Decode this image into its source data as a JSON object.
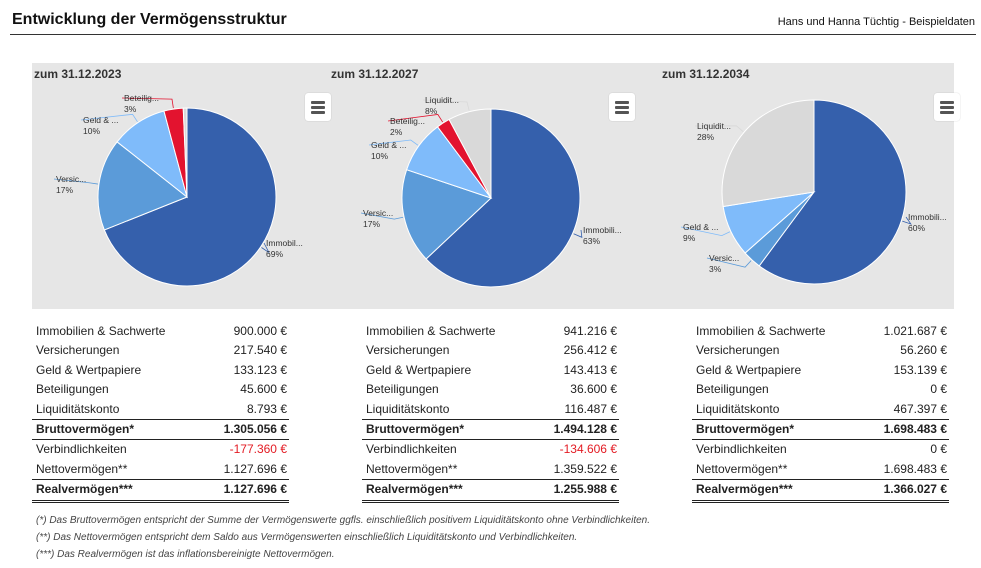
{
  "header": {
    "title": "Entwicklung der Vermögensstruktur",
    "subtitle": "Hans und Hanna Tüchtig - Beispieldaten"
  },
  "colors": {
    "Immobilien": "#3560ac",
    "Versicherungen": "#5b9bd9",
    "Geld": "#7fbbfa",
    "Beteiligungen": "#e3132f",
    "Liquiditaet": "#d9d9d9",
    "negative": "#e31b23",
    "band": "#e6e6e6"
  },
  "chart_data": [
    {
      "type": "pie",
      "title": "zum 31.12.2023",
      "slices": [
        {
          "label": "Immobil...",
          "value": 900000,
          "percent": "69%"
        },
        {
          "label": "Versic...",
          "value": 217540,
          "percent": "17%"
        },
        {
          "label": "Geld & ...",
          "value": 133123,
          "percent": "10%"
        },
        {
          "label": "Beteilig...",
          "value": 45600,
          "percent": "3%"
        },
        {
          "label": "",
          "value": 8793,
          "percent": ""
        }
      ]
    },
    {
      "type": "pie",
      "title": "zum 31.12.2027",
      "slices": [
        {
          "label": "Immobili...",
          "value": 941216,
          "percent": "63%"
        },
        {
          "label": "Versic...",
          "value": 256412,
          "percent": "17%"
        },
        {
          "label": "Geld & ...",
          "value": 143413,
          "percent": "10%"
        },
        {
          "label": "Beteilig...",
          "value": 36600,
          "percent": "2%"
        },
        {
          "label": "Liquidit...",
          "value": 116487,
          "percent": "8%"
        }
      ]
    },
    {
      "type": "pie",
      "title": "zum 31.12.2034",
      "slices": [
        {
          "label": "Immobili...",
          "value": 1021687,
          "percent": "60%"
        },
        {
          "label": "Versic...",
          "value": 56260,
          "percent": "3%"
        },
        {
          "label": "Geld & ...",
          "value": 153139,
          "percent": "9%"
        },
        {
          "label": "",
          "value": 0,
          "percent": ""
        },
        {
          "label": "Liquidit...",
          "value": 467397,
          "percent": "28%"
        }
      ]
    }
  ],
  "tables": [
    {
      "rows": [
        {
          "label": "Immobilien & Sachwerte",
          "value": "900.000 €"
        },
        {
          "label": "Versicherungen",
          "value": "217.540 €"
        },
        {
          "label": "Geld & Wertpapiere",
          "value": "133.123 €"
        },
        {
          "label": "Beteiligungen",
          "value": "45.600 €"
        },
        {
          "label": "Liquiditätskonto",
          "value": "8.793 €"
        },
        {
          "label": "Bruttovermögen*",
          "value": "1.305.056 €"
        },
        {
          "label": "Verbindlichkeiten",
          "value": "-177.360 €"
        },
        {
          "label": "Nettovermögen**",
          "value": "1.127.696 €"
        },
        {
          "label": "Realvermögen***",
          "value": "1.127.696 €"
        }
      ]
    },
    {
      "rows": [
        {
          "label": "Immobilien & Sachwerte",
          "value": "941.216 €"
        },
        {
          "label": "Versicherungen",
          "value": "256.412 €"
        },
        {
          "label": "Geld & Wertpapiere",
          "value": "143.413 €"
        },
        {
          "label": "Beteiligungen",
          "value": "36.600 €"
        },
        {
          "label": "Liquiditätskonto",
          "value": "116.487 €"
        },
        {
          "label": "Bruttovermögen*",
          "value": "1.494.128 €"
        },
        {
          "label": "Verbindlichkeiten",
          "value": "-134.606 €"
        },
        {
          "label": "Nettovermögen**",
          "value": "1.359.522 €"
        },
        {
          "label": "Realvermögen***",
          "value": "1.255.988 €"
        }
      ]
    },
    {
      "rows": [
        {
          "label": "Immobilien & Sachwerte",
          "value": "1.021.687 €"
        },
        {
          "label": "Versicherungen",
          "value": "56.260 €"
        },
        {
          "label": "Geld & Wertpapiere",
          "value": "153.139 €"
        },
        {
          "label": "Beteiligungen",
          "value": "0 €"
        },
        {
          "label": "Liquiditätskonto",
          "value": "467.397 €"
        },
        {
          "label": "Bruttovermögen*",
          "value": "1.698.483 €"
        },
        {
          "label": "Verbindlichkeiten",
          "value": "0 €"
        },
        {
          "label": "Nettovermögen**",
          "value": "1.698.483 €"
        },
        {
          "label": "Realvermögen***",
          "value": "1.366.027 €"
        }
      ]
    }
  ],
  "footnotes": [
    "(*)   Das Bruttovermögen entspricht der Summe der Vermögenswerte ggfls. einschließlich positivem Liquiditätskonto ohne Verbindlichkeiten.",
    "(**)  Das Nettovermögen entspricht dem Saldo aus Vermögenswerten einschließlich Liquiditätskonto und Verbindlichkeiten.",
    "(***) Das Realvermögen ist das inflationsbereinigte Nettovermögen."
  ]
}
